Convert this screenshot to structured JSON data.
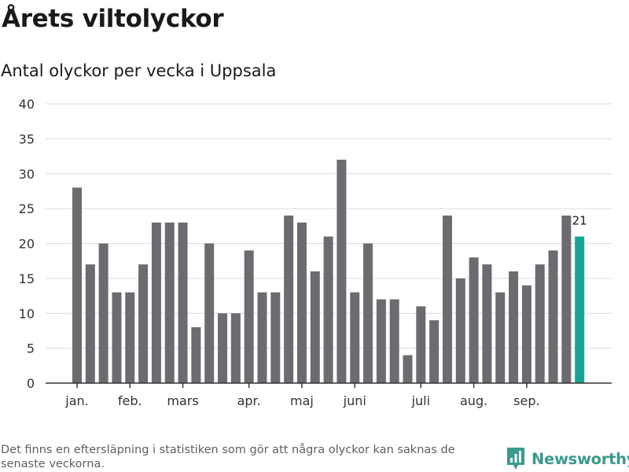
{
  "title": "Årets viltolyckor",
  "subtitle": "Antal olyckor per vecka i Uppsala",
  "footnote": "Det finns en eftersläpning i statistiken som gör att några olyckor kan saknas de senaste veckorna.",
  "brand": {
    "name": "Newsworthy",
    "icon": "newsworthy-logo-icon"
  },
  "colors": {
    "bar": "#6c6b70",
    "highlight": "#17a394",
    "grid": "#dcdcdc",
    "axis": "#333333",
    "label": "#333333"
  },
  "chart_data": {
    "type": "bar",
    "title": "Antal olyckor per vecka i Uppsala",
    "xlabel": "",
    "ylabel": "",
    "ylim": [
      0,
      40
    ],
    "yticks": [
      0,
      5,
      10,
      15,
      20,
      25,
      30,
      35,
      40
    ],
    "grid": true,
    "values": [
      28,
      17,
      20,
      13,
      13,
      17,
      23,
      23,
      23,
      8,
      20,
      10,
      10,
      19,
      13,
      13,
      24,
      23,
      16,
      21,
      32,
      13,
      20,
      12,
      12,
      4,
      11,
      9,
      24,
      15,
      18,
      17,
      13,
      16,
      14,
      17,
      19,
      24,
      21
    ],
    "highlight_index": 38,
    "highlight_label": "21",
    "month_labels": [
      {
        "label": "jan.",
        "bar_index": 0
      },
      {
        "label": "feb.",
        "bar_index": 4
      },
      {
        "label": "mars",
        "bar_index": 8
      },
      {
        "label": "apr.",
        "bar_index": 13
      },
      {
        "label": "maj",
        "bar_index": 17
      },
      {
        "label": "juni",
        "bar_index": 21
      },
      {
        "label": "juli",
        "bar_index": 26
      },
      {
        "label": "aug.",
        "bar_index": 30
      },
      {
        "label": "sep.",
        "bar_index": 34
      }
    ]
  }
}
